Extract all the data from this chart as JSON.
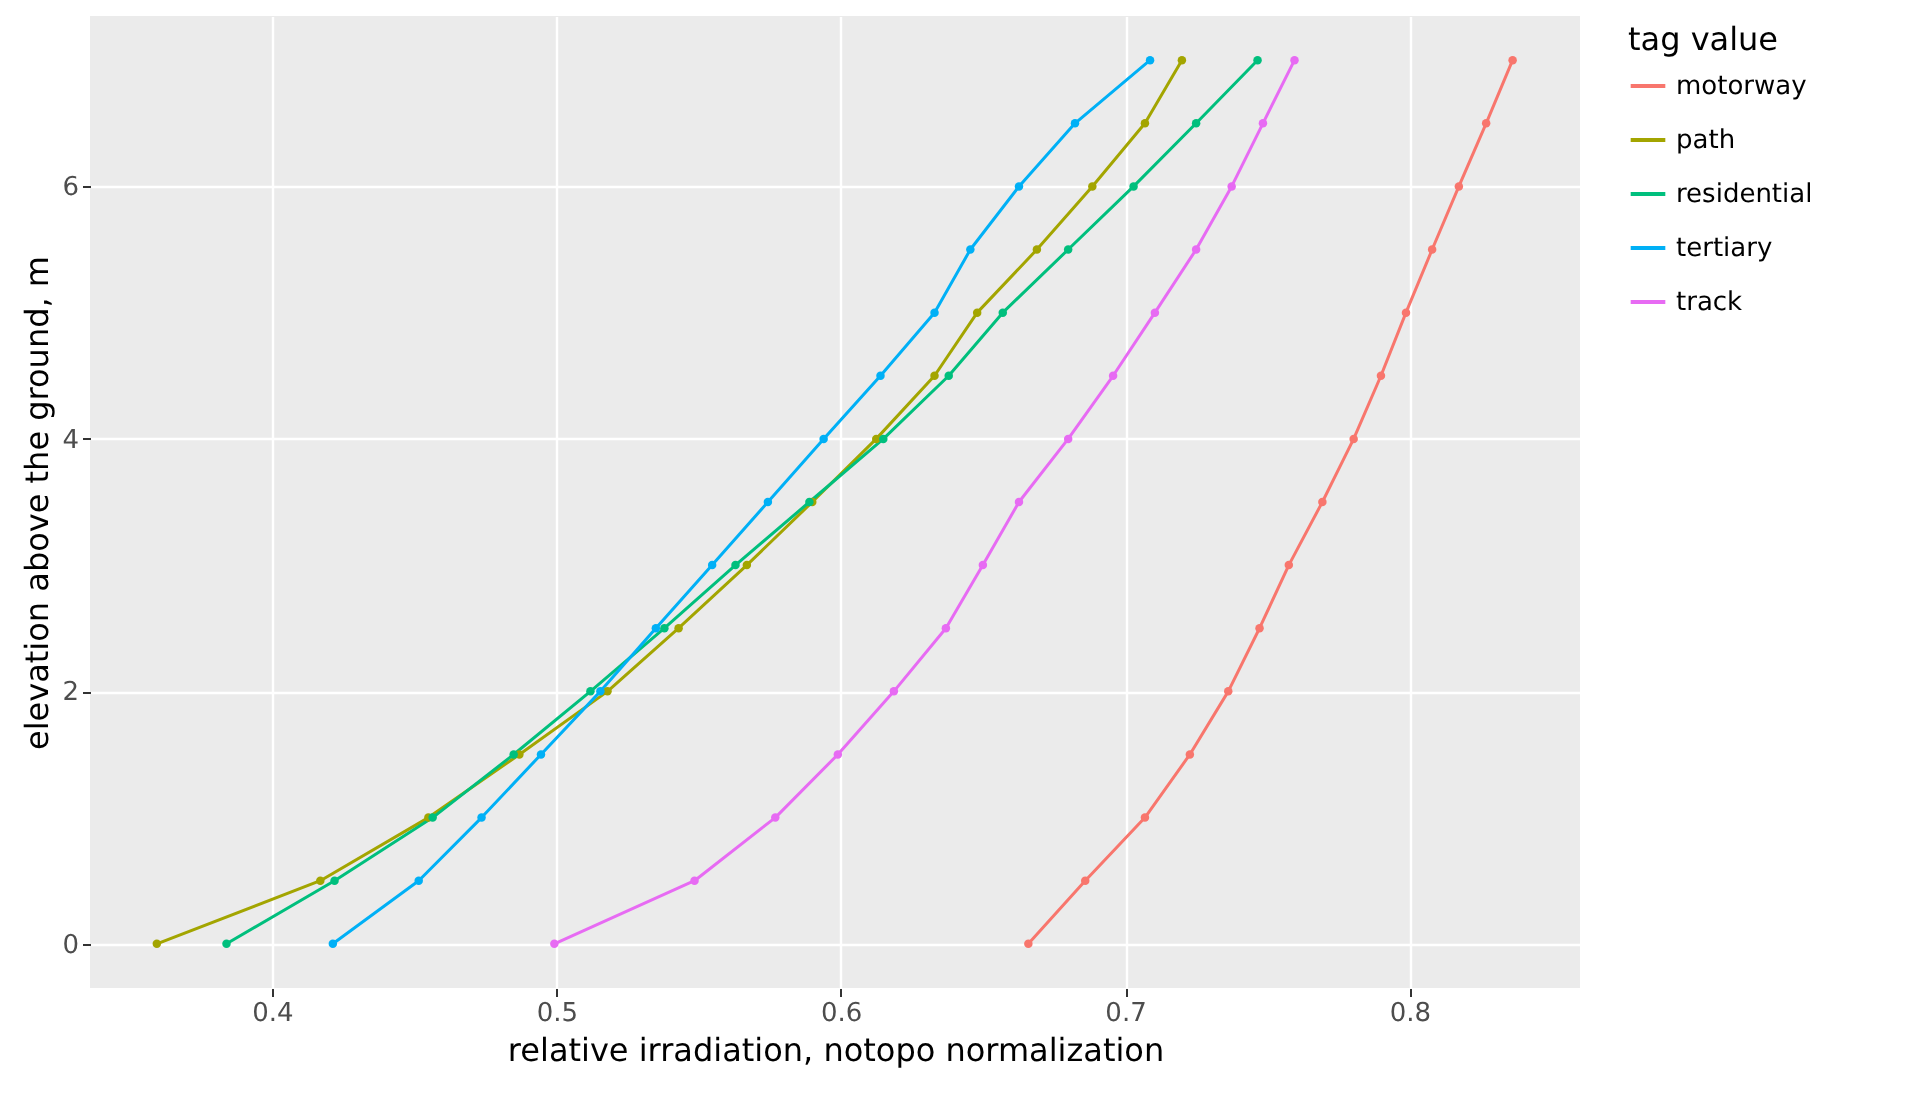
{
  "chart_data": {
    "type": "line",
    "xlabel": "relative irradiation, notopo normalization",
    "ylabel": "elevation above the ground, m",
    "legend_title": "tag value",
    "legend": "right",
    "grid": true,
    "marker": "circle",
    "line_style": "solid",
    "xlim": [
      0.336,
      0.86
    ],
    "xticks": [
      0.4,
      0.5,
      0.6,
      0.7,
      0.8
    ],
    "ylim": [
      -0.35,
      7.35
    ],
    "yticks": [
      0,
      2,
      4,
      6
    ],
    "series": [
      {
        "name": "motorway",
        "color": "#f8766d",
        "x": [
          0.666,
          0.686,
          0.707,
          0.7228,
          0.7363,
          0.7473,
          0.7576,
          0.7694,
          0.7804,
          0.79,
          0.7988,
          0.808,
          0.8174,
          0.827,
          0.8363
        ],
        "values": [
          0,
          0.5,
          1,
          1.5,
          2,
          2.5,
          3,
          3.5,
          4,
          4.5,
          5,
          5.5,
          6,
          6.5,
          7
        ]
      },
      {
        "name": "path",
        "color": "#a3a500",
        "x": [
          0.3595,
          0.417,
          0.455,
          0.487,
          0.518,
          0.543,
          0.567,
          0.59,
          0.6125,
          0.633,
          0.648,
          0.669,
          0.6885,
          0.707,
          0.72
        ],
        "values": [
          0,
          0.5,
          1,
          1.5,
          2,
          2.5,
          3,
          3.5,
          4,
          4.5,
          5,
          5.5,
          6,
          6.5,
          7
        ]
      },
      {
        "name": "residential",
        "color": "#00bf7d",
        "x": [
          0.384,
          0.422,
          0.4565,
          0.485,
          0.512,
          0.538,
          0.563,
          0.589,
          0.615,
          0.638,
          0.657,
          0.68,
          0.703,
          0.725,
          0.7466
        ],
        "values": [
          0,
          0.5,
          1,
          1.5,
          2,
          2.5,
          3,
          3.5,
          4,
          4.5,
          5,
          5.5,
          6,
          6.5,
          7
        ]
      },
      {
        "name": "tertiary",
        "color": "#00b0f6",
        "x": [
          0.4214,
          0.4516,
          0.4737,
          0.4946,
          0.5155,
          0.535,
          0.5548,
          0.5744,
          0.594,
          0.614,
          0.633,
          0.6456,
          0.6627,
          0.6824,
          0.7088
        ],
        "values": [
          0,
          0.5,
          1,
          1.5,
          2,
          2.5,
          3,
          3.5,
          4,
          4.5,
          5,
          5.5,
          6,
          6.5,
          7
        ]
      },
      {
        "name": "track",
        "color": "#e76bf3",
        "x": [
          0.4993,
          0.5486,
          0.577,
          0.599,
          0.6187,
          0.637,
          0.65,
          0.6627,
          0.68,
          0.6958,
          0.7105,
          0.725,
          0.7375,
          0.7485,
          0.7596
        ],
        "values": [
          0,
          0.5,
          1,
          1.5,
          2,
          2.5,
          3,
          3.5,
          4,
          4.5,
          5,
          5.5,
          6,
          6.5,
          7
        ]
      }
    ]
  }
}
